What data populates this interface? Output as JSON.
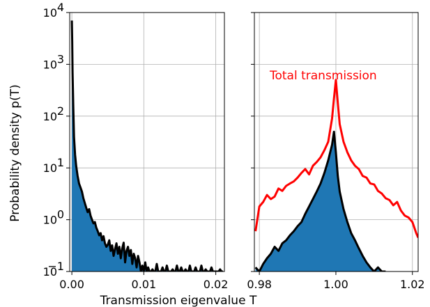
{
  "chart_data": [
    {
      "type": "area",
      "panel": "left",
      "xlabel": "Transmission eigenvalue T",
      "ylabel": "Probability density p(T)",
      "xlim": [
        -0.0003,
        0.0212
      ],
      "ylim": [
        0.1,
        10000
      ],
      "yscale": "log",
      "grid": true,
      "xticks": [
        0.0,
        0.01,
        0.02
      ],
      "xtick_labels": [
        "0.00",
        "0.01",
        "0.02"
      ],
      "yticks": [
        0.1,
        1,
        10,
        100,
        1000,
        10000
      ],
      "ytick_labels": [
        {
          "base": "10",
          "exp": "−1"
        },
        {
          "base": "10",
          "exp": "0"
        },
        {
          "base": "10",
          "exp": "1"
        },
        {
          "base": "10",
          "exp": "2"
        },
        {
          "base": "10",
          "exp": "3"
        },
        {
          "base": "10",
          "exp": "4"
        }
      ],
      "series": [
        {
          "style": "filled-black-outline",
          "fill": "#1f77b4",
          "line": "#000000",
          "x": [
            0.0,
            5e-05,
            0.0001,
            0.0002,
            0.0003,
            0.00045,
            0.0006,
            0.0008,
            0.001,
            0.0012,
            0.0014,
            0.0016,
            0.0018,
            0.002,
            0.0022,
            0.0024,
            0.0026,
            0.0028,
            0.003,
            0.0032,
            0.0034,
            0.0036,
            0.0038,
            0.004,
            0.0042,
            0.0044,
            0.0046,
            0.0048,
            0.005,
            0.0052,
            0.0054,
            0.0056,
            0.0058,
            0.006,
            0.0062,
            0.0064,
            0.0066,
            0.0068,
            0.007,
            0.0072,
            0.0074,
            0.0076,
            0.0078,
            0.008,
            0.0082,
            0.0084,
            0.0086,
            0.0088,
            0.009,
            0.0092,
            0.0094,
            0.0096,
            0.0098,
            0.01,
            0.0102,
            0.0104,
            0.0106,
            0.0108,
            0.011,
            0.0112,
            0.0114,
            0.0116,
            0.0118,
            0.012,
            0.0122,
            0.0124,
            0.0126,
            0.0128,
            0.013,
            0.0132,
            0.0134,
            0.0136,
            0.0138,
            0.014,
            0.0142,
            0.0144,
            0.0146,
            0.0148,
            0.015,
            0.0152,
            0.0154,
            0.0156,
            0.0158,
            0.016,
            0.0162,
            0.0164,
            0.0166,
            0.0168,
            0.017,
            0.0172,
            0.0174,
            0.0176,
            0.0178,
            0.018,
            0.0182,
            0.0184,
            0.0186,
            0.0188,
            0.019,
            0.0192,
            0.0194,
            0.0196,
            0.0198,
            0.02,
            0.0202,
            0.0204,
            0.0206,
            0.0208,
            0.021
          ],
          "y": [
            7000,
            2800,
            700,
            150,
            40,
            18,
            11,
            7,
            5,
            4.2,
            3.5,
            2.6,
            2.1,
            1.7,
            1.4,
            1.6,
            1.2,
            1.0,
            0.85,
            0.9,
            0.7,
            0.6,
            0.5,
            0.55,
            0.4,
            0.48,
            0.35,
            0.3,
            0.33,
            0.4,
            0.25,
            0.32,
            0.2,
            0.27,
            0.35,
            0.22,
            0.3,
            0.18,
            0.28,
            0.36,
            0.15,
            0.25,
            0.3,
            0.2,
            0.26,
            0.14,
            0.22,
            0.18,
            0.12,
            0.2,
            0.15,
            0.1,
            0.13,
            0.1,
            0.15,
            0.1,
            0.12,
            0.1,
            0.1,
            0.11,
            0.1,
            0.1,
            0.14,
            0.1,
            0.1,
            0.1,
            0.12,
            0.1,
            0.1,
            0.13,
            0.1,
            0.1,
            0.1,
            0.11,
            0.1,
            0.1,
            0.13,
            0.1,
            0.1,
            0.12,
            0.1,
            0.1,
            0.11,
            0.1,
            0.1,
            0.13,
            0.1,
            0.1,
            0.1,
            0.12,
            0.1,
            0.1,
            0.1,
            0.13,
            0.1,
            0.1,
            0.11,
            0.1,
            0.1,
            0.1,
            0.12,
            0.1,
            0.1,
            0.1,
            0.1,
            0.1,
            0.11,
            0.1,
            0.1
          ]
        }
      ]
    },
    {
      "type": "line",
      "panel": "right",
      "xlim": [
        0.9787,
        1.0215
      ],
      "ylim": [
        0.1,
        10000
      ],
      "yscale": "log",
      "grid": true,
      "xticks": [
        0.98,
        1.0,
        1.02
      ],
      "xtick_labels": [
        "0.98",
        "1.00",
        "1.02"
      ],
      "annotations": [
        {
          "text": "Total transmission",
          "color": "#ff0000"
        }
      ],
      "series": [
        {
          "style": "red-line",
          "line": "#ff0000",
          "x": [
            0.979,
            0.98,
            0.981,
            0.982,
            0.983,
            0.984,
            0.985,
            0.986,
            0.987,
            0.988,
            0.989,
            0.99,
            0.991,
            0.992,
            0.993,
            0.994,
            0.995,
            0.996,
            0.997,
            0.998,
            0.999,
            0.9995,
            1.0,
            1.0005,
            1.001,
            1.002,
            1.003,
            1.004,
            1.005,
            1.006,
            1.007,
            1.008,
            1.009,
            1.01,
            1.011,
            1.012,
            1.013,
            1.014,
            1.015,
            1.016,
            1.017,
            1.018,
            1.019,
            1.02,
            1.021,
            1.0215
          ],
          "y": [
            0.6,
            1.8,
            2.2,
            3.0,
            2.5,
            2.8,
            4.0,
            3.6,
            4.5,
            5.0,
            5.5,
            6.5,
            8.0,
            9.5,
            7.5,
            11,
            13,
            16,
            22,
            32,
            90,
            220,
            500,
            180,
            70,
            32,
            20,
            14,
            11,
            9.5,
            7,
            6.5,
            5,
            4.8,
            3.6,
            3.2,
            2.6,
            2.4,
            1.9,
            2.2,
            1.5,
            1.2,
            1.1,
            0.9,
            0.55,
            0.45
          ]
        },
        {
          "style": "filled-black-outline",
          "fill": "#1f77b4",
          "line": "#000000",
          "x": [
            0.979,
            0.98,
            0.981,
            0.982,
            0.983,
            0.984,
            0.985,
            0.986,
            0.987,
            0.988,
            0.989,
            0.99,
            0.991,
            0.992,
            0.993,
            0.994,
            0.995,
            0.996,
            0.997,
            0.998,
            0.999,
            0.9995,
            1.0,
            1.0005,
            1.001,
            1.002,
            1.003,
            1.004,
            1.005,
            1.006,
            1.007,
            1.008,
            1.009,
            1.01,
            1.011,
            1.012,
            1.013
          ],
          "y": [
            0.12,
            0.1,
            0.14,
            0.18,
            0.22,
            0.3,
            0.25,
            0.35,
            0.4,
            0.5,
            0.6,
            0.75,
            0.9,
            1.3,
            1.8,
            2.5,
            3.5,
            5.0,
            8.0,
            14,
            28,
            50,
            20,
            7,
            3.5,
            1.6,
            0.9,
            0.55,
            0.4,
            0.28,
            0.2,
            0.15,
            0.12,
            0.1,
            0.12,
            0.1,
            0.1
          ]
        }
      ]
    }
  ]
}
